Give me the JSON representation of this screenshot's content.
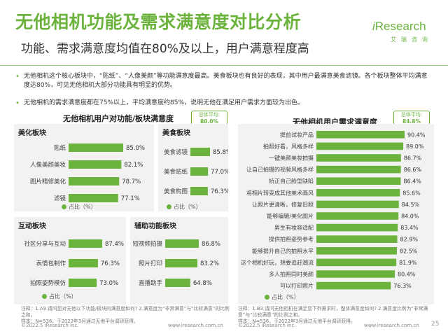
{
  "header": {
    "title": "无他相机功能及需求满意度对比分析",
    "subtitle": "功能、需求满意度均值在80%及以上，用户满意程度高",
    "logo_main_i": "i",
    "logo_main_rest": "Research",
    "logo_sub": "艾瑞咨询",
    "brand_color": "#6cb33e"
  },
  "bullets": [
    "无他相机这个核心板块中，“贴纸”、“人像美颜”等功能满意度最高。美食板块也有良好的表现，其中用户最满意美食滤镜。各个板块整体平均满意度达80%，可见无他相机大部分功能具有明显的优势。",
    "无他相机的需求满意度都在75%以上，平均满意度约85%，说明无他在满足用户需求方面较为出色。"
  ],
  "left_panel": {
    "title": "无他相机用户对功能/板块满意度",
    "avg_label": "总体平均:",
    "avg_value": "80.0%",
    "legend": "占比（%）",
    "note": "注释：1.A9.请问您对无他以下功能/板块的满意度如何? 2.满意度为“非常满意”与“比较满意”的比例之和。\n样本：N=536，于2022年3月通过无他平台调研获得。"
  },
  "right_panel": {
    "title": "无他相机用户需求满意度",
    "avg_label": "总体平均:",
    "avg_value": "84.8%",
    "legend": "占比（%）",
    "note": "注释：1.B3.请问无他相机在满足您下列需求时，整体满意度如何? 2.满意度比例为“非常满意”与“比较满意”的比例之和。\n样本：N=536，于2022年3月通过无他平台调研获得。"
  },
  "footer": {
    "copyright_left": "©2022.5 iResearch Inc.",
    "url_left": "www.iresearch.com.cn",
    "copyright_right": "©2022.5 iResearch Inc.",
    "url_right": "www.iresearch.com.cn",
    "page": "25"
  },
  "chart_data": [
    {
      "type": "bar",
      "orientation": "horizontal",
      "title": "美化板块",
      "categories": [
        "贴纸",
        "人像美颜美妆",
        "图片精修美化",
        "滤镜"
      ],
      "values": [
        85.0,
        82.1,
        78.7,
        77.1
      ],
      "value_labels": [
        "85.0%",
        "82.1%",
        "78.7%",
        "77.1%"
      ],
      "legend": "占比（%）",
      "color": "#6cb33e"
    },
    {
      "type": "bar",
      "orientation": "horizontal",
      "title": "美食板块",
      "categories": [
        "美食滤镜",
        "美食贴纸",
        "美食构图"
      ],
      "values": [
        85.8,
        77.0,
        76.3
      ],
      "value_labels": [
        "85.8%",
        "77.0%",
        "76.3%"
      ],
      "legend": "占比（%）",
      "color": "#6cb33e"
    },
    {
      "type": "bar",
      "orientation": "horizontal",
      "title": "互动板块",
      "categories": [
        "社区分享与互动",
        "表情包制作",
        "拍照姿势模仿"
      ],
      "values": [
        87.4,
        76.3,
        73.0
      ],
      "value_labels": [
        "87.4%",
        "76.3%",
        "73.0%"
      ],
      "legend": "占比（%）",
      "color": "#6cb33e"
    },
    {
      "type": "bar",
      "orientation": "horizontal",
      "title": "辅助功能板块",
      "categories": [
        "短视频拍摄",
        "照片打印",
        "直播助手"
      ],
      "values": [
        86.8,
        83.2,
        64.8
      ],
      "value_labels": [
        "86.8%",
        "83.2%",
        "64.8%"
      ],
      "legend": "占比（%）",
      "color": "#6cb33e"
    },
    {
      "type": "bar",
      "orientation": "horizontal",
      "title": "无他相机用户需求满意度",
      "categories": [
        "提前试妆产品",
        "拍照好看，风格多样",
        "一键美颜美妆拍摄",
        "让自己拍摄的视频风格多样",
        "矫正自己脸型缺陷",
        "将相片转变成其他美术画风",
        "让照片更清晰，修复旧照",
        "能够编辑/美化图片",
        "男生有妆容适配",
        "提供拍照姿势参考",
        "能够提升自己的拍照水平",
        "这个相机好玩，想要追赶潮流",
        "多人拍照同时美颜",
        "可以打印照片"
      ],
      "values": [
        90.4,
        89.0,
        86.7,
        86.6,
        86.4,
        85.6,
        84.5,
        84.0,
        83.4,
        82.9,
        82.5,
        81.9,
        80.4,
        76.3
      ],
      "value_labels": [
        "90.4%",
        "89.0%",
        "86.7%",
        "86.6%",
        "86.4%",
        "85.6%",
        "84.5%",
        "84.0%",
        "83.4%",
        "82.9%",
        "82.5%",
        "81.9%",
        "80.4%",
        "76.3%"
      ],
      "legend": "占比（%）",
      "color": "#6cb33e"
    }
  ]
}
